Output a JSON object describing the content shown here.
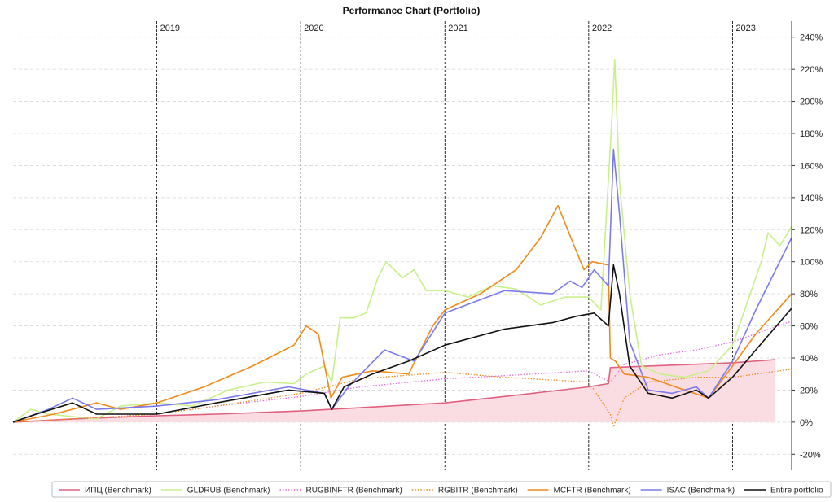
{
  "chart_data": {
    "type": "line",
    "title": "Performance Chart (Portfolio)",
    "xlabel": "",
    "ylabel": "",
    "y_unit": "%",
    "ylim": [
      -30,
      250
    ],
    "xlim": [
      "2018-01-01",
      "2023-05-31"
    ],
    "y_ticks": [
      "-20%",
      "0%",
      "20%",
      "40%",
      "60%",
      "80%",
      "100%",
      "120%",
      "140%",
      "160%",
      "180%",
      "200%",
      "220%",
      "240%"
    ],
    "y_tick_values": [
      -20,
      0,
      20,
      40,
      60,
      80,
      100,
      120,
      140,
      160,
      180,
      200,
      220,
      240
    ],
    "y_axis_side": "right",
    "grid": true,
    "year_markers": [
      {
        "label": "2019",
        "date": "2019-01-01"
      },
      {
        "label": "2020",
        "date": "2020-01-01"
      },
      {
        "label": "2021",
        "date": "2021-01-01"
      },
      {
        "label": "2022",
        "date": "2022-01-01"
      },
      {
        "label": "2023",
        "date": "2023-01-01"
      }
    ],
    "legend_position": "bottom",
    "series": [
      {
        "name": "ИПЦ (Benchmark)",
        "color": "#e0607e",
        "style": "solid",
        "fill": "#f9dde3",
        "points": [
          [
            "2018-01-01",
            0
          ],
          [
            "2018-06-01",
            2
          ],
          [
            "2019-01-01",
            4
          ],
          [
            "2019-06-01",
            5
          ],
          [
            "2020-01-01",
            7
          ],
          [
            "2020-06-01",
            9
          ],
          [
            "2021-01-01",
            12
          ],
          [
            "2021-06-01",
            16
          ],
          [
            "2022-01-01",
            22
          ],
          [
            "2022-02-20",
            24
          ],
          [
            "2022-02-25",
            34
          ],
          [
            "2022-06-01",
            35
          ],
          [
            "2023-01-01",
            37
          ],
          [
            "2023-04-20",
            39
          ]
        ]
      },
      {
        "name": "GLDRUB (Benchmark)",
        "color": "#c8f08a",
        "style": "solid",
        "points": [
          [
            "2018-01-01",
            0
          ],
          [
            "2018-02-15",
            8
          ],
          [
            "2018-04-01",
            5
          ],
          [
            "2018-08-01",
            2
          ],
          [
            "2018-10-01",
            10
          ],
          [
            "2019-01-01",
            12
          ],
          [
            "2019-04-01",
            10
          ],
          [
            "2019-07-01",
            20
          ],
          [
            "2019-10-01",
            25
          ],
          [
            "2019-12-15",
            24
          ],
          [
            "2020-01-15",
            30
          ],
          [
            "2020-03-01",
            35
          ],
          [
            "2020-03-20",
            25
          ],
          [
            "2020-04-10",
            65
          ],
          [
            "2020-05-15",
            65
          ],
          [
            "2020-06-15",
            68
          ],
          [
            "2020-07-15",
            90
          ],
          [
            "2020-08-05",
            100
          ],
          [
            "2020-09-15",
            90
          ],
          [
            "2020-10-15",
            95
          ],
          [
            "2020-11-15",
            82
          ],
          [
            "2021-01-01",
            82
          ],
          [
            "2021-03-01",
            78
          ],
          [
            "2021-05-01",
            85
          ],
          [
            "2021-07-01",
            83
          ],
          [
            "2021-09-01",
            73
          ],
          [
            "2021-11-01",
            78
          ],
          [
            "2022-01-01",
            78
          ],
          [
            "2022-02-01",
            70
          ],
          [
            "2022-02-28",
            185
          ],
          [
            "2022-03-08",
            226
          ],
          [
            "2022-03-20",
            150
          ],
          [
            "2022-04-15",
            80
          ],
          [
            "2022-05-15",
            35
          ],
          [
            "2022-07-01",
            30
          ],
          [
            "2022-09-01",
            28
          ],
          [
            "2022-11-01",
            32
          ],
          [
            "2023-01-01",
            48
          ],
          [
            "2023-02-01",
            70
          ],
          [
            "2023-03-15",
            100
          ],
          [
            "2023-04-01",
            118
          ],
          [
            "2023-05-01",
            110
          ],
          [
            "2023-05-31",
            122
          ]
        ]
      },
      {
        "name": "RUGBINFTR (Benchmark)",
        "color": "#e06be0",
        "style": "dotted",
        "points": [
          [
            "2018-01-01",
            0
          ],
          [
            "2018-06-01",
            2
          ],
          [
            "2019-01-01",
            5
          ],
          [
            "2019-06-01",
            10
          ],
          [
            "2020-01-01",
            16
          ],
          [
            "2020-06-01",
            22
          ],
          [
            "2021-01-01",
            27
          ],
          [
            "2021-06-01",
            29
          ],
          [
            "2022-01-01",
            32
          ],
          [
            "2022-02-25",
            25
          ],
          [
            "2022-04-01",
            36
          ],
          [
            "2022-07-01",
            42
          ],
          [
            "2022-10-01",
            45
          ],
          [
            "2023-01-01",
            50
          ],
          [
            "2023-05-31",
            63
          ]
        ]
      },
      {
        "name": "RGBITR (Benchmark)",
        "color": "#f08a1a",
        "style": "dotted",
        "points": [
          [
            "2018-01-01",
            0
          ],
          [
            "2018-06-01",
            2
          ],
          [
            "2019-01-01",
            5
          ],
          [
            "2019-06-01",
            10
          ],
          [
            "2020-01-01",
            18
          ],
          [
            "2020-06-01",
            27
          ],
          [
            "2021-01-01",
            31
          ],
          [
            "2021-06-01",
            28
          ],
          [
            "2022-01-01",
            25
          ],
          [
            "2022-02-25",
            5
          ],
          [
            "2022-03-05",
            -3
          ],
          [
            "2022-04-01",
            15
          ],
          [
            "2022-06-01",
            25
          ],
          [
            "2022-10-01",
            28
          ],
          [
            "2023-01-01",
            28
          ],
          [
            "2023-05-31",
            33
          ]
        ]
      },
      {
        "name": "MCFTR (Benchmark)",
        "color": "#f08a1a",
        "style": "solid",
        "points": [
          [
            "2018-01-01",
            0
          ],
          [
            "2018-04-15",
            5
          ],
          [
            "2018-08-01",
            12
          ],
          [
            "2018-10-01",
            8
          ],
          [
            "2019-01-01",
            12
          ],
          [
            "2019-05-01",
            22
          ],
          [
            "2019-09-01",
            35
          ],
          [
            "2019-12-15",
            48
          ],
          [
            "2020-01-15",
            60
          ],
          [
            "2020-02-15",
            55
          ],
          [
            "2020-03-18",
            15
          ],
          [
            "2020-04-15",
            28
          ],
          [
            "2020-07-01",
            32
          ],
          [
            "2020-10-01",
            30
          ],
          [
            "2020-12-01",
            60
          ],
          [
            "2021-01-01",
            70
          ],
          [
            "2021-04-01",
            80
          ],
          [
            "2021-07-01",
            95
          ],
          [
            "2021-09-01",
            115
          ],
          [
            "2021-10-15",
            135
          ],
          [
            "2021-11-25",
            110
          ],
          [
            "2021-12-20",
            95
          ],
          [
            "2022-01-10",
            100
          ],
          [
            "2022-02-20",
            98
          ],
          [
            "2022-02-25",
            40
          ],
          [
            "2022-03-10",
            38
          ],
          [
            "2022-04-01",
            30
          ],
          [
            "2022-06-01",
            28
          ],
          [
            "2022-09-01",
            20
          ],
          [
            "2022-11-01",
            15
          ],
          [
            "2023-01-01",
            35
          ],
          [
            "2023-03-01",
            55
          ],
          [
            "2023-05-31",
            80
          ]
        ]
      },
      {
        "name": "ISAC (Benchmark)",
        "color": "#7a7af0",
        "style": "solid",
        "points": [
          [
            "2018-01-01",
            0
          ],
          [
            "2018-04-01",
            8
          ],
          [
            "2018-06-01",
            15
          ],
          [
            "2018-08-01",
            8
          ],
          [
            "2019-01-01",
            10
          ],
          [
            "2019-06-01",
            14
          ],
          [
            "2019-12-01",
            22
          ],
          [
            "2020-03-01",
            18
          ],
          [
            "2020-03-20",
            8
          ],
          [
            "2020-05-01",
            22
          ],
          [
            "2020-08-01",
            45
          ],
          [
            "2020-10-15",
            38
          ],
          [
            "2021-01-01",
            68
          ],
          [
            "2021-06-01",
            82
          ],
          [
            "2021-10-01",
            80
          ],
          [
            "2021-11-15",
            88
          ],
          [
            "2021-12-15",
            84
          ],
          [
            "2022-01-15",
            95
          ],
          [
            "2022-02-20",
            85
          ],
          [
            "2022-03-05",
            170
          ],
          [
            "2022-03-20",
            130
          ],
          [
            "2022-04-15",
            50
          ],
          [
            "2022-06-01",
            20
          ],
          [
            "2022-08-01",
            18
          ],
          [
            "2022-10-01",
            22
          ],
          [
            "2022-11-01",
            15
          ],
          [
            "2023-01-01",
            38
          ],
          [
            "2023-03-01",
            70
          ],
          [
            "2023-05-31",
            115
          ]
        ]
      },
      {
        "name": "Entire portfolio",
        "color": "#111111",
        "style": "solid",
        "points": [
          [
            "2018-01-01",
            0
          ],
          [
            "2018-03-01",
            5
          ],
          [
            "2018-06-01",
            12
          ],
          [
            "2018-08-01",
            5
          ],
          [
            "2019-01-01",
            5
          ],
          [
            "2019-06-01",
            12
          ],
          [
            "2019-12-01",
            20
          ],
          [
            "2020-03-01",
            18
          ],
          [
            "2020-03-20",
            8
          ],
          [
            "2020-04-20",
            22
          ],
          [
            "2020-07-01",
            30
          ],
          [
            "2020-10-01",
            38
          ],
          [
            "2021-01-01",
            48
          ],
          [
            "2021-06-01",
            58
          ],
          [
            "2021-10-01",
            62
          ],
          [
            "2021-12-01",
            66
          ],
          [
            "2022-01-15",
            68
          ],
          [
            "2022-02-20",
            60
          ],
          [
            "2022-03-05",
            98
          ],
          [
            "2022-03-20",
            80
          ],
          [
            "2022-04-15",
            35
          ],
          [
            "2022-06-01",
            18
          ],
          [
            "2022-08-01",
            15
          ],
          [
            "2022-10-01",
            20
          ],
          [
            "2022-11-01",
            15
          ],
          [
            "2023-01-01",
            28
          ],
          [
            "2023-03-01",
            45
          ],
          [
            "2023-05-31",
            71
          ]
        ]
      }
    ]
  }
}
